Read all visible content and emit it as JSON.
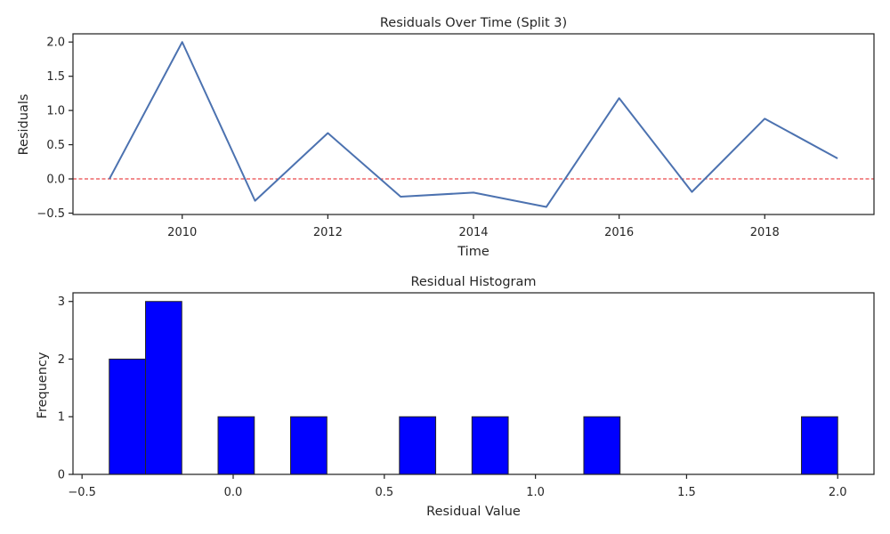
{
  "chart_data": [
    {
      "type": "line",
      "title": "Residuals Over Time (Split 3)",
      "xlabel": "Time",
      "ylabel": "Residuals",
      "x": [
        2009,
        2010,
        2011,
        2012,
        2013,
        2014,
        2015,
        2016,
        2017,
        2018,
        2019
      ],
      "series": [
        {
          "values": [
            0.0,
            2.0,
            -0.32,
            0.67,
            -0.26,
            -0.2,
            -0.41,
            1.18,
            -0.19,
            0.88,
            0.3
          ],
          "color": "#4c72b0"
        }
      ],
      "reference_line": {
        "y": 0,
        "color": "#e41a1c",
        "style": "dashed"
      },
      "xlim": [
        2008.5,
        2019.5
      ],
      "ylim": [
        -0.52,
        2.12
      ],
      "xticks": [
        2010,
        2012,
        2014,
        2016,
        2018
      ],
      "yticks": [
        -0.5,
        0.0,
        0.5,
        1.0,
        1.5,
        2.0
      ],
      "xtick_labels": [
        "2010",
        "2012",
        "2014",
        "2016",
        "2018"
      ],
      "ytick_labels": [
        "−0.5",
        "0.0",
        "0.5",
        "1.0",
        "1.5",
        "2.0"
      ],
      "grid": false
    },
    {
      "type": "bar",
      "title": "Residual Histogram",
      "xlabel": "Residual Value",
      "ylabel": "Frequency",
      "bins": [
        {
          "start": -0.41,
          "end": -0.29,
          "count": 2
        },
        {
          "start": -0.29,
          "end": -0.17,
          "count": 3
        },
        {
          "start": -0.05,
          "end": 0.07,
          "count": 1
        },
        {
          "start": 0.19,
          "end": 0.31,
          "count": 1
        },
        {
          "start": 0.55,
          "end": 0.67,
          "count": 1
        },
        {
          "start": 0.79,
          "end": 0.91,
          "count": 1
        },
        {
          "start": 1.16,
          "end": 1.28,
          "count": 1
        },
        {
          "start": 1.88,
          "end": 2.0,
          "count": 1
        }
      ],
      "bar_color": "#0000ff",
      "edge_color": "#262626",
      "xlim": [
        -0.53,
        2.12
      ],
      "ylim": [
        0,
        3.15
      ],
      "xticks": [
        -0.5,
        0.0,
        0.5,
        1.0,
        1.5,
        2.0
      ],
      "yticks": [
        0,
        1,
        2,
        3
      ],
      "xtick_labels": [
        "−0.5",
        "0.0",
        "0.5",
        "1.0",
        "1.5",
        "2.0"
      ],
      "ytick_labels": [
        "0",
        "1",
        "2",
        "3"
      ],
      "grid": false
    }
  ]
}
